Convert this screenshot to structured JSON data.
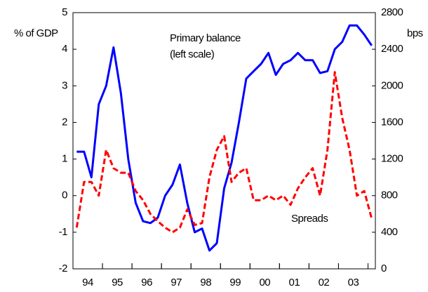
{
  "chart_data": {
    "type": "line",
    "categories": [
      null,
      "94",
      null,
      null,
      null,
      "95",
      null,
      null,
      null,
      "96",
      null,
      null,
      null,
      "97",
      null,
      null,
      null,
      "98",
      null,
      null,
      null,
      "99",
      null,
      null,
      null,
      "00",
      null,
      null,
      null,
      "01",
      null,
      null,
      null,
      "02",
      null,
      null,
      null,
      "03",
      null,
      null,
      null
    ],
    "series": [
      {
        "color": "#0000ff",
        "axis": "y",
        "dash": false,
        "values": [
          1.2,
          1.2,
          0.5,
          2.5,
          3.0,
          4.05,
          2.8,
          1.0,
          -0.2,
          -0.7,
          -0.75,
          -0.6,
          0.0,
          0.3,
          0.85,
          -0.2,
          -1.0,
          -0.9,
          -1.5,
          -1.3,
          0.2,
          0.9,
          2.0,
          3.2,
          3.4,
          3.6,
          3.9,
          3.3,
          3.6,
          3.7,
          3.9,
          3.7,
          3.7,
          3.35,
          3.4,
          4.0,
          4.2,
          4.65,
          4.65,
          4.4,
          4.1
        ]
      },
      {
        "color": "#ff0000",
        "axis": "y2",
        "dash": true,
        "values": [
          450,
          950,
          950,
          800,
          1300,
          1100,
          1050,
          1050,
          850,
          750,
          600,
          520,
          450,
          400,
          450,
          650,
          480,
          500,
          1000,
          1300,
          1450,
          950,
          1050,
          1100,
          750,
          750,
          800,
          750,
          800,
          700,
          880,
          1000,
          1100,
          800,
          1300,
          2150,
          1650,
          1300,
          800,
          850,
          550
        ]
      }
    ],
    "ylabel": "% of GDP",
    "y2label": "bps",
    "ylim": [
      -2,
      5
    ],
    "yticks": [
      -2,
      -1,
      0,
      1,
      2,
      3,
      4,
      5
    ],
    "y2lim": [
      0,
      2800
    ],
    "y2ticks": [
      0,
      400,
      800,
      1200,
      1600,
      2000,
      2400,
      2800
    ],
    "annotations": [
      "Primary balance",
      "(left scale)",
      "Spreads"
    ]
  }
}
